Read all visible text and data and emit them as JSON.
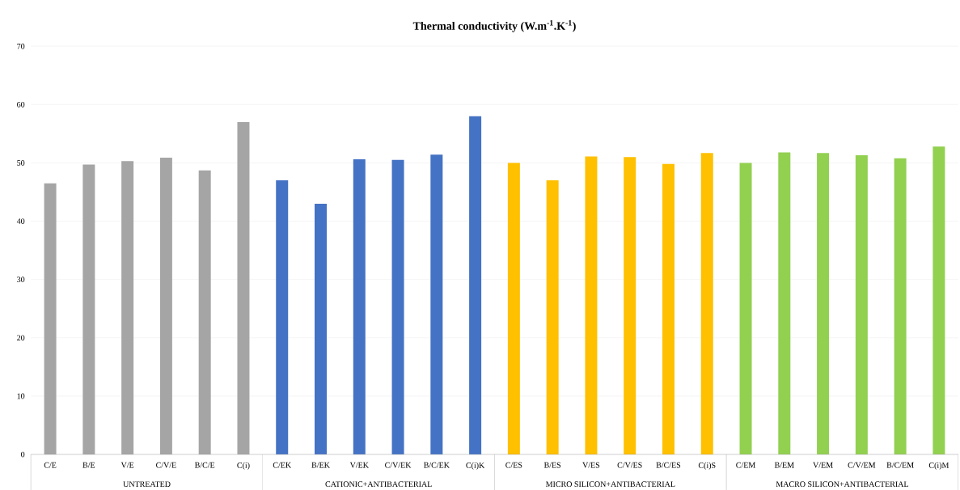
{
  "chart_data": {
    "type": "bar",
    "title": "Thermal conductivity (W.m$^{-1}$.K$^{-1}$)",
    "categories": [
      "C/E",
      "B/E",
      "V/E",
      "C/V/E",
      "B/C/E",
      "C(i)",
      "C/EK",
      "B/EK",
      "V/EK",
      "C/V/EK",
      "B/C/EK",
      "C(i)K",
      "C/ES",
      "B/ES",
      "V/ES",
      "C/V/ES",
      "B/C/ES",
      "C(i)S",
      "C/EM",
      "B/EM",
      "V/EM",
      "C/V/EM",
      "B/C/EM",
      "C(i)M"
    ],
    "values": [
      46.5,
      49.7,
      50.3,
      50.9,
      48.7,
      57.0,
      47.0,
      43.0,
      50.6,
      50.5,
      51.4,
      58.0,
      50.0,
      47.0,
      51.1,
      51.0,
      49.8,
      51.7,
      50.0,
      51.8,
      51.7,
      51.3,
      50.8,
      52.8
    ],
    "colors": [
      "#a5a5a5",
      "#a5a5a5",
      "#a5a5a5",
      "#a5a5a5",
      "#a5a5a5",
      "#a5a5a5",
      "#4472c4",
      "#4472c4",
      "#4472c4",
      "#4472c4",
      "#4472c4",
      "#4472c4",
      "#ffc000",
      "#ffc000",
      "#ffc000",
      "#ffc000",
      "#ffc000",
      "#ffc000",
      "#92d050",
      "#92d050",
      "#92d050",
      "#92d050",
      "#92d050",
      "#92d050"
    ],
    "annotations": [
      "UNTREATED",
      "CATIONIC+ANTIBACTERIAL",
      "MICRO SILICON+ANTIBACTERIAL",
      "MACRO SILICON+ANTIBACTERIAL"
    ],
    "ylim": [
      0,
      70
    ],
    "yticks": [
      0,
      10,
      20,
      30,
      40,
      50,
      60,
      70
    ],
    "grid": "y"
  }
}
